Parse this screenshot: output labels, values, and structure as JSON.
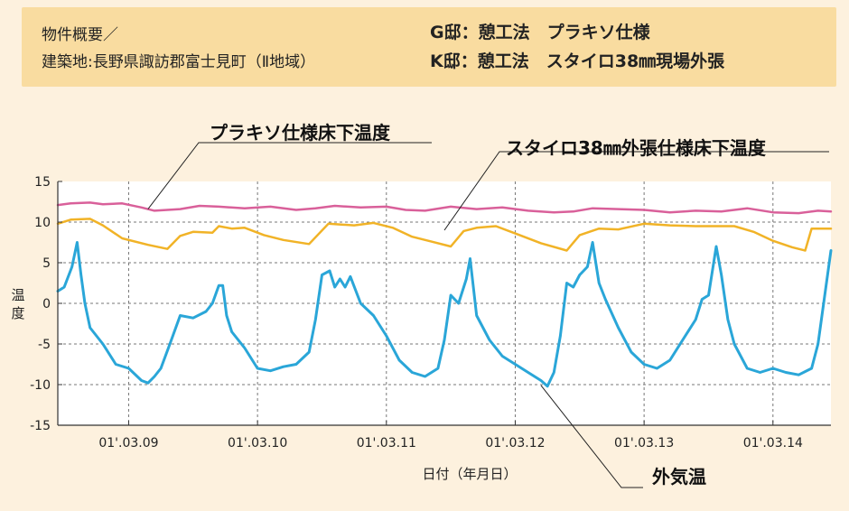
{
  "info": {
    "overview": "物件概要／",
    "location": "建築地:長野県諏訪郡富士見町（Ⅱ地域）",
    "house_g": "G邸：憩工法　プラキソ仕様",
    "house_k": "K邸：憩工法　スタイロ38㎜現場外張"
  },
  "colors": {
    "background": "#fdf1de",
    "info_box": "#f9dca0",
    "plot_area": "#ffffff",
    "pink": "#d9609a",
    "orange": "#f1b327",
    "blue": "#2aa6d8"
  },
  "chart_data": {
    "type": "line",
    "title": "",
    "xlabel": "日付（年月日）",
    "ylabel": "温度",
    "ylim": [
      -15,
      15
    ],
    "yticks": [
      15,
      10,
      5,
      0,
      -5,
      -10,
      -15
    ],
    "x_tick_labels": [
      "01'.03.09",
      "01'.03.10",
      "01'.03.11",
      "01'.03.12",
      "01'.03.13",
      "01'.03.14"
    ],
    "x_tick_days": [
      1,
      2,
      3,
      4,
      5,
      6
    ],
    "xlim": [
      0.45,
      6.45
    ],
    "grid": true,
    "series": [
      {
        "name": "プラキソ仕様床下温度",
        "color": "pink",
        "x": [
          0.45,
          0.55,
          0.7,
          0.8,
          0.95,
          1.1,
          1.2,
          1.4,
          1.55,
          1.7,
          1.9,
          2.1,
          2.3,
          2.45,
          2.6,
          2.8,
          3.0,
          3.15,
          3.3,
          3.5,
          3.7,
          3.9,
          4.1,
          4.3,
          4.45,
          4.6,
          4.8,
          5.0,
          5.2,
          5.4,
          5.6,
          5.8,
          6.0,
          6.2,
          6.35,
          6.45
        ],
        "y": [
          12.1,
          12.3,
          12.4,
          12.2,
          12.3,
          11.8,
          11.4,
          11.6,
          12.0,
          11.9,
          11.7,
          11.9,
          11.5,
          11.7,
          12.0,
          11.8,
          11.9,
          11.5,
          11.4,
          11.9,
          11.6,
          11.8,
          11.4,
          11.2,
          11.3,
          11.7,
          11.6,
          11.5,
          11.2,
          11.4,
          11.3,
          11.7,
          11.2,
          11.1,
          11.4,
          11.3
        ]
      },
      {
        "name": "スタイロ38㎜外張仕様床下温度",
        "color": "orange",
        "x": [
          0.45,
          0.55,
          0.7,
          0.8,
          0.95,
          1.15,
          1.3,
          1.4,
          1.5,
          1.65,
          1.7,
          1.8,
          1.9,
          2.05,
          2.2,
          2.4,
          2.55,
          2.65,
          2.75,
          2.9,
          3.05,
          3.2,
          3.35,
          3.5,
          3.6,
          3.7,
          3.85,
          4.0,
          4.2,
          4.4,
          4.5,
          4.65,
          4.8,
          5.0,
          5.2,
          5.4,
          5.55,
          5.7,
          5.85,
          6.0,
          6.15,
          6.25,
          6.3,
          6.45
        ],
        "y": [
          9.8,
          10.3,
          10.4,
          9.6,
          8.0,
          7.2,
          6.7,
          8.3,
          8.8,
          8.7,
          9.5,
          9.2,
          9.3,
          8.4,
          7.8,
          7.3,
          9.8,
          9.7,
          9.6,
          9.9,
          9.3,
          8.2,
          7.6,
          7.0,
          8.9,
          9.3,
          9.5,
          8.6,
          7.4,
          6.5,
          8.4,
          9.2,
          9.1,
          9.8,
          9.6,
          9.5,
          9.5,
          9.5,
          8.8,
          7.7,
          6.9,
          6.5,
          9.2,
          9.2
        ]
      },
      {
        "name": "外気温",
        "color": "blue",
        "x": [
          0.45,
          0.5,
          0.56,
          0.6,
          0.63,
          0.66,
          0.7,
          0.8,
          0.9,
          1.0,
          1.1,
          1.15,
          1.2,
          1.25,
          1.32,
          1.4,
          1.5,
          1.6,
          1.65,
          1.7,
          1.73,
          1.76,
          1.8,
          1.9,
          2.0,
          2.1,
          2.2,
          2.3,
          2.4,
          2.45,
          2.5,
          2.56,
          2.6,
          2.64,
          2.68,
          2.72,
          2.8,
          2.9,
          3.0,
          3.1,
          3.2,
          3.3,
          3.4,
          3.45,
          3.5,
          3.56,
          3.62,
          3.65,
          3.7,
          3.8,
          3.9,
          4.0,
          4.1,
          4.2,
          4.25,
          4.3,
          4.35,
          4.4,
          4.45,
          4.5,
          4.56,
          4.6,
          4.65,
          4.7,
          4.8,
          4.9,
          5.0,
          5.1,
          5.2,
          5.3,
          5.4,
          5.45,
          5.5,
          5.56,
          5.6,
          5.65,
          5.7,
          5.8,
          5.9,
          6.0,
          6.1,
          6.2,
          6.3,
          6.35,
          6.45
        ],
        "y": [
          1.5,
          2.0,
          4.5,
          7.5,
          3.5,
          0.0,
          -3.0,
          -5.0,
          -7.5,
          -8.0,
          -9.5,
          -9.8,
          -9.0,
          -8.0,
          -5.0,
          -1.5,
          -1.8,
          -1.0,
          0.0,
          2.2,
          2.2,
          -1.5,
          -3.5,
          -5.5,
          -8.0,
          -8.3,
          -7.8,
          -7.5,
          -6.0,
          -2.0,
          3.5,
          4.0,
          2.0,
          3.0,
          2.0,
          3.3,
          0.0,
          -1.5,
          -4.0,
          -7.0,
          -8.5,
          -9.0,
          -8.0,
          -4.5,
          1.0,
          0.0,
          3.0,
          5.5,
          -1.5,
          -4.5,
          -6.5,
          -7.5,
          -8.5,
          -9.5,
          -10.2,
          -8.5,
          -4.0,
          2.5,
          2.0,
          3.5,
          4.5,
          7.5,
          2.5,
          0.5,
          -3.0,
          -6.0,
          -7.5,
          -8.0,
          -7.0,
          -4.5,
          -2.0,
          0.5,
          1.0,
          7.0,
          3.5,
          -2.0,
          -5.0,
          -8.0,
          -8.5,
          -8.0,
          -8.5,
          -8.8,
          -8.0,
          -5.0,
          6.5
        ]
      }
    ],
    "callouts": [
      "プラキソ仕様床下温度",
      "スタイロ38㎜外張仕様床下温度",
      "外気温"
    ]
  }
}
